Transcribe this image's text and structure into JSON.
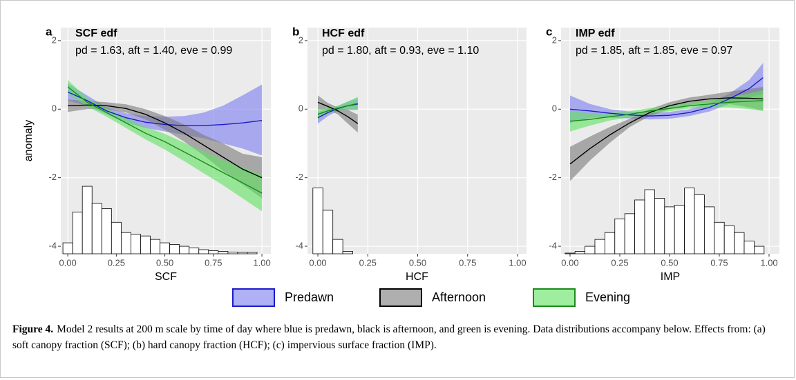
{
  "chart_data": [
    {
      "type": "line",
      "panel_label": "a",
      "title": "SCF edf",
      "subtitle": "pd = 1.63, aft = 1.40, eve = 0.99",
      "xlabel": "SCF",
      "ylabel": "anomaly",
      "xlim": [
        -0.036,
        1.046
      ],
      "ylim": [
        -4.22,
        2.38
      ],
      "xticks": [
        {
          "value": 0,
          "label": "0.00"
        },
        {
          "value": 0.25,
          "label": "0.25"
        },
        {
          "value": 0.5,
          "label": "0.50"
        },
        {
          "value": 0.75,
          "label": "0.75"
        },
        {
          "value": 1,
          "label": "1.00"
        }
      ],
      "yticks": [
        -4,
        -2,
        0,
        2
      ],
      "grid": true,
      "histogram": {
        "color": "#ffffff",
        "bins": [
          -0.025,
          0.025,
          0.075,
          0.125,
          0.175,
          0.225,
          0.275,
          0.325,
          0.375,
          0.425,
          0.475,
          0.525,
          0.575,
          0.625,
          0.675,
          0.725,
          0.775,
          0.825,
          0.875,
          0.925,
          0.975
        ],
        "values": [
          -3.9,
          -3.0,
          -2.25,
          -2.75,
          -2.9,
          -3.3,
          -3.6,
          -3.65,
          -3.7,
          -3.8,
          -3.9,
          -3.95,
          -4.0,
          -4.05,
          -4.1,
          -4.13,
          -4.15,
          -4.17,
          -4.18,
          -4.18
        ]
      },
      "series": [
        {
          "name": "Predawn",
          "color": "#1c1cc8",
          "fill": "#7b7bf0",
          "x": [
            0,
            0.1,
            0.2,
            0.3,
            0.4,
            0.5,
            0.6,
            0.7,
            0.8,
            0.9,
            1
          ],
          "values": [
            0.5,
            0.25,
            -0.05,
            -0.25,
            -0.38,
            -0.45,
            -0.48,
            -0.48,
            -0.45,
            -0.4,
            -0.33
          ],
          "lower": [
            0.25,
            0.1,
            -0.15,
            -0.4,
            -0.55,
            -0.65,
            -0.75,
            -0.85,
            -1.0,
            -1.15,
            -1.35
          ],
          "upper": [
            0.75,
            0.4,
            0.05,
            -0.12,
            -0.2,
            -0.22,
            -0.2,
            -0.1,
            0.1,
            0.4,
            0.72
          ]
        },
        {
          "name": "Afternoon",
          "color": "#000000",
          "fill": "#7a7a7a",
          "x": [
            0,
            0.1,
            0.2,
            0.3,
            0.4,
            0.5,
            0.6,
            0.7,
            0.8,
            0.9,
            1
          ],
          "values": [
            0.1,
            0.12,
            0.1,
            0.02,
            -0.15,
            -0.4,
            -0.7,
            -1.05,
            -1.4,
            -1.75,
            -2.0
          ],
          "lower": [
            -0.08,
            0.0,
            0.0,
            -0.1,
            -0.3,
            -0.6,
            -0.95,
            -1.35,
            -1.8,
            -2.2,
            -2.6
          ],
          "upper": [
            0.28,
            0.24,
            0.2,
            0.14,
            0.0,
            -0.2,
            -0.45,
            -0.75,
            -1.0,
            -1.3,
            -1.4
          ]
        },
        {
          "name": "Evening",
          "color": "#1a8a1a",
          "fill": "#5fe35f",
          "x": [
            0,
            0.1,
            0.2,
            0.3,
            0.4,
            0.5,
            0.6,
            0.7,
            0.8,
            0.9,
            1
          ],
          "values": [
            0.65,
            0.2,
            -0.1,
            -0.4,
            -0.7,
            -0.95,
            -1.25,
            -1.55,
            -1.85,
            -2.15,
            -2.45
          ],
          "lower": [
            0.45,
            0.08,
            -0.22,
            -0.55,
            -0.88,
            -1.18,
            -1.52,
            -1.87,
            -2.22,
            -2.6,
            -2.98
          ],
          "upper": [
            0.85,
            0.32,
            0.02,
            -0.25,
            -0.52,
            -0.72,
            -0.98,
            -1.23,
            -1.48,
            -1.7,
            -1.92
          ]
        }
      ]
    },
    {
      "type": "line",
      "panel_label": "b",
      "title": "HCF edf",
      "subtitle": "pd = 1.80, aft = 0.93, eve = 1.10",
      "xlabel": "HCF",
      "xlim": [
        -0.052,
        1.045
      ],
      "ylim": [
        -4.22,
        2.38
      ],
      "xticks": [
        {
          "value": 0,
          "label": "0.00"
        },
        {
          "value": 0.25,
          "label": "0.25"
        },
        {
          "value": 0.5,
          "label": "0.50"
        },
        {
          "value": 0.75,
          "label": "0.75"
        },
        {
          "value": 1,
          "label": "1.00"
        }
      ],
      "yticks": [
        -4,
        -2,
        0,
        2
      ],
      "grid": true,
      "histogram": {
        "color": "#ffffff",
        "bins": [
          -0.025,
          0.025,
          0.075,
          0.125,
          0.175
        ],
        "values": [
          -2.3,
          -2.95,
          -3.8,
          -4.15
        ]
      },
      "series": [
        {
          "name": "Predawn",
          "color": "#1c1cc8",
          "fill": "#7b7bf0",
          "x": [
            0,
            0.05,
            0.1,
            0.15,
            0.2
          ],
          "values": [
            -0.25,
            -0.1,
            0.02,
            0.1,
            0.15
          ],
          "lower": [
            -0.42,
            -0.2,
            -0.05,
            -0.02,
            -0.02
          ],
          "upper": [
            -0.08,
            0.0,
            0.09,
            0.22,
            0.32
          ]
        },
        {
          "name": "Afternoon",
          "color": "#000000",
          "fill": "#7a7a7a",
          "x": [
            0,
            0.05,
            0.1,
            0.15,
            0.2
          ],
          "values": [
            0.2,
            0.08,
            -0.05,
            -0.22,
            -0.42
          ],
          "lower": [
            0.0,
            -0.02,
            -0.15,
            -0.42,
            -0.68
          ],
          "upper": [
            0.4,
            0.18,
            0.05,
            -0.02,
            -0.16
          ]
        },
        {
          "name": "Evening",
          "color": "#1a8a1a",
          "fill": "#5fe35f",
          "x": [
            0,
            0.05,
            0.1,
            0.15,
            0.2
          ],
          "values": [
            -0.15,
            -0.05,
            0.03,
            0.1,
            0.17
          ],
          "lower": [
            -0.3,
            -0.13,
            -0.04,
            -0.02,
            -0.02
          ],
          "upper": [
            0.0,
            0.03,
            0.1,
            0.22,
            0.36
          ]
        }
      ]
    },
    {
      "type": "line",
      "panel_label": "c",
      "title": "IMP edf",
      "subtitle": "pd = 1.85, aft = 1.85, eve = 0.97",
      "xlabel": "IMP",
      "xlim": [
        -0.045,
        1.052
      ],
      "ylim": [
        -4.22,
        2.38
      ],
      "xticks": [
        {
          "value": 0,
          "label": "0.00"
        },
        {
          "value": 0.25,
          "label": "0.25"
        },
        {
          "value": 0.5,
          "label": "0.50"
        },
        {
          "value": 0.75,
          "label": "0.75"
        },
        {
          "value": 1,
          "label": "1.00"
        }
      ],
      "yticks": [
        -4,
        -2,
        0,
        2
      ],
      "grid": true,
      "histogram": {
        "color": "#ffffff",
        "bins": [
          -0.025,
          0.025,
          0.075,
          0.125,
          0.175,
          0.225,
          0.275,
          0.325,
          0.375,
          0.425,
          0.475,
          0.525,
          0.575,
          0.625,
          0.675,
          0.725,
          0.775,
          0.825,
          0.875,
          0.925,
          0.975
        ],
        "values": [
          -4.2,
          -4.15,
          -4.0,
          -3.8,
          -3.6,
          -3.2,
          -3.05,
          -2.65,
          -2.35,
          -2.6,
          -2.85,
          -2.8,
          -2.3,
          -2.5,
          -2.85,
          -3.3,
          -3.4,
          -3.6,
          -3.85,
          -4.0
        ]
      },
      "series": [
        {
          "name": "Predawn",
          "color": "#1c1cc8",
          "fill": "#7b7bf0",
          "x": [
            0,
            0.1,
            0.2,
            0.3,
            0.4,
            0.5,
            0.6,
            0.7,
            0.8,
            0.9,
            0.97
          ],
          "values": [
            0,
            -0.05,
            -0.12,
            -0.17,
            -0.2,
            -0.18,
            -0.1,
            0.05,
            0.3,
            0.6,
            0.92
          ],
          "lower": [
            -0.4,
            -0.25,
            -0.25,
            -0.27,
            -0.3,
            -0.28,
            -0.2,
            -0.07,
            0.15,
            0.35,
            0.45
          ],
          "upper": [
            0.4,
            0.15,
            0.0,
            -0.07,
            -0.1,
            -0.08,
            0.0,
            0.17,
            0.45,
            0.85,
            1.35
          ]
        },
        {
          "name": "Afternoon",
          "color": "#000000",
          "fill": "#7a7a7a",
          "x": [
            0,
            0.1,
            0.2,
            0.3,
            0.4,
            0.5,
            0.6,
            0.7,
            0.8,
            0.9,
            0.97
          ],
          "values": [
            -1.6,
            -1.15,
            -0.75,
            -0.4,
            -0.1,
            0.1,
            0.23,
            0.3,
            0.33,
            0.32,
            0.3
          ],
          "lower": [
            -2.1,
            -1.5,
            -0.98,
            -0.52,
            -0.2,
            0.0,
            0.12,
            0.18,
            0.15,
            0.05,
            -0.05
          ],
          "upper": [
            -1.1,
            -0.8,
            -0.52,
            -0.28,
            0.0,
            0.2,
            0.34,
            0.42,
            0.51,
            0.59,
            0.65
          ]
        },
        {
          "name": "Evening",
          "color": "#1a8a1a",
          "fill": "#5fe35f",
          "x": [
            0,
            0.1,
            0.2,
            0.3,
            0.4,
            0.5,
            0.6,
            0.7,
            0.8,
            0.9,
            0.97
          ],
          "values": [
            -0.35,
            -0.3,
            -0.22,
            -0.15,
            -0.05,
            0.02,
            0.1,
            0.15,
            0.2,
            0.23,
            0.25
          ],
          "lower": [
            -0.65,
            -0.48,
            -0.33,
            -0.24,
            -0.13,
            -0.06,
            0.02,
            0.05,
            0.05,
            0.0,
            -0.05
          ],
          "upper": [
            -0.05,
            -0.12,
            -0.11,
            -0.06,
            0.03,
            0.1,
            0.18,
            0.25,
            0.35,
            0.46,
            0.55
          ]
        }
      ]
    }
  ],
  "caption": {
    "label": "Figure 4.",
    "text": "Model 2 results at 200 m scale by time of day where blue is predawn, black is afternoon, and green is evening. Data distributions accompany below. Effects from: (a) soft canopy fraction (SCF); (b) hard canopy fraction (HCF); (c) impervious surface fraction (IMP)."
  }
}
